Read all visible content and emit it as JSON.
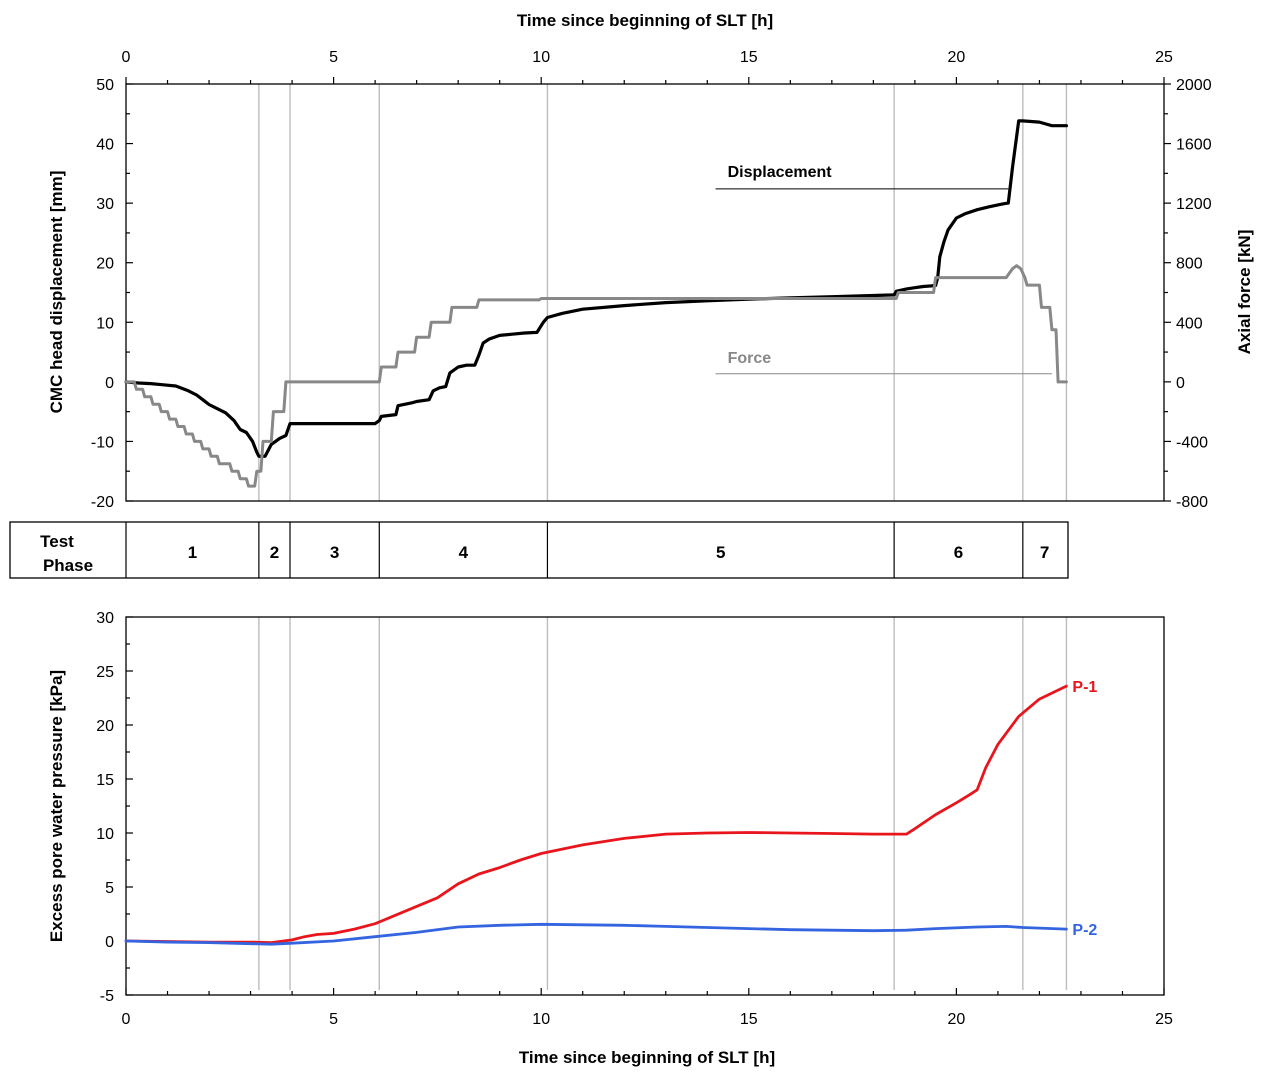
{
  "chart_data": [
    {
      "type": "line",
      "title": "",
      "xlabel_top": "Time since beginning of SLT [h]",
      "ylabel": "CMC head displacement [mm]",
      "y2label": "Axial force [kN]",
      "xlim": [
        0,
        25
      ],
      "ylim": [
        -20,
        50
      ],
      "y2lim": [
        -800,
        2000
      ],
      "xticks": [
        "0",
        "5",
        "10",
        "15",
        "20",
        "25"
      ],
      "yticks": [
        "-20",
        "-10",
        "0",
        "10",
        "20",
        "30",
        "40",
        "50"
      ],
      "y2ticks": [
        "-800",
        "-400",
        "0",
        "400",
        "800",
        "1200",
        "1600",
        "2000"
      ],
      "phase_boundaries": [
        3.2,
        3.95,
        6.1,
        10.15,
        18.5,
        21.6,
        22.65
      ],
      "series": [
        {
          "name": "Displacement",
          "axis": "left",
          "color": "#000000",
          "x": [
            0,
            0.3,
            0.6,
            0.9,
            1.2,
            1.5,
            1.7,
            1.85,
            2.0,
            2.2,
            2.4,
            2.6,
            2.75,
            2.9,
            3.05,
            3.15,
            3.2,
            3.35,
            3.5,
            3.6,
            3.7,
            3.85,
            3.95,
            4.4,
            5.0,
            5.5,
            6.0,
            6.1,
            6.15,
            6.5,
            6.55,
            6.9,
            7.0,
            7.3,
            7.4,
            7.55,
            7.7,
            7.8,
            8.0,
            8.2,
            8.4,
            8.5,
            8.6,
            8.75,
            9.0,
            9.3,
            9.6,
            9.9,
            10.05,
            10.15,
            10.5,
            11.0,
            12.0,
            13.0,
            14.0,
            15.0,
            16.0,
            17.0,
            18.0,
            18.5,
            18.55,
            18.8,
            19.0,
            19.2,
            19.4,
            19.5,
            19.55,
            19.6,
            19.7,
            19.8,
            20.0,
            20.2,
            20.5,
            20.8,
            21.0,
            21.15,
            21.25,
            21.35,
            21.5,
            21.6,
            21.8,
            22.0,
            22.2,
            22.3,
            22.65
          ],
          "y": [
            0,
            -0.2,
            -0.3,
            -0.5,
            -0.7,
            -1.5,
            -2.2,
            -3.0,
            -3.8,
            -4.5,
            -5.2,
            -6.5,
            -8.0,
            -8.5,
            -10.0,
            -11.8,
            -12.5,
            -12.5,
            -10.5,
            -10.0,
            -9.5,
            -9.0,
            -7.0,
            -7.0,
            -7.0,
            -7.0,
            -7.0,
            -6.5,
            -5.8,
            -5.5,
            -4.0,
            -3.5,
            -3.3,
            -3.0,
            -1.5,
            -1.0,
            -0.8,
            1.5,
            2.5,
            2.8,
            2.8,
            4.5,
            6.5,
            7.2,
            7.8,
            8.0,
            8.2,
            8.3,
            10.0,
            10.8,
            11.5,
            12.2,
            12.8,
            13.3,
            13.6,
            13.9,
            14.1,
            14.3,
            14.5,
            14.6,
            15.2,
            15.6,
            15.8,
            16.0,
            16.1,
            16.2,
            17.5,
            21.0,
            23.5,
            25.5,
            27.5,
            28.2,
            28.9,
            29.4,
            29.7,
            29.9,
            30.0,
            36.0,
            43.8,
            43.8,
            43.7,
            43.6,
            43.2,
            43.0,
            43.0
          ]
        },
        {
          "name": "Force",
          "axis": "right",
          "color": "#888888",
          "x": [
            0,
            0.2,
            0.25,
            0.4,
            0.45,
            0.6,
            0.65,
            0.8,
            0.85,
            1.0,
            1.05,
            1.2,
            1.25,
            1.4,
            1.45,
            1.6,
            1.65,
            1.8,
            1.85,
            2.0,
            2.05,
            2.2,
            2.25,
            2.5,
            2.55,
            2.7,
            2.75,
            2.9,
            2.95,
            3.1,
            3.15,
            3.25,
            3.3,
            3.5,
            3.55,
            3.8,
            3.85,
            3.95,
            4.0,
            6.1,
            6.15,
            6.5,
            6.55,
            6.95,
            7.0,
            7.3,
            7.35,
            7.8,
            7.85,
            8.45,
            8.5,
            9.95,
            10.0,
            10.15,
            10.3,
            18.55,
            18.6,
            19.45,
            19.5,
            20.7,
            21.0,
            21.2,
            21.35,
            21.45,
            21.55,
            21.65,
            21.7,
            22.0,
            22.05,
            22.25,
            22.3,
            22.4,
            22.45,
            22.65
          ],
          "y": [
            0,
            0,
            -50,
            -50,
            -100,
            -100,
            -150,
            -150,
            -200,
            -200,
            -250,
            -250,
            -300,
            -300,
            -350,
            -350,
            -400,
            -400,
            -450,
            -450,
            -500,
            -500,
            -550,
            -550,
            -600,
            -600,
            -650,
            -650,
            -700,
            -700,
            -600,
            -600,
            -400,
            -400,
            -200,
            -200,
            0,
            0,
            0,
            0,
            100,
            100,
            200,
            200,
            300,
            300,
            400,
            400,
            500,
            500,
            550,
            550,
            560,
            560,
            560,
            560,
            600,
            600,
            700,
            700,
            700,
            700,
            760,
            780,
            760,
            700,
            650,
            650,
            500,
            500,
            350,
            350,
            0,
            0
          ]
        }
      ],
      "annotations": [
        {
          "text": "Displacement",
          "x": 14.2,
          "y": 34.4,
          "color": "#000000"
        },
        {
          "text": "Force",
          "x": 14.2,
          "y": 3.2,
          "color": "#888888"
        }
      ]
    },
    {
      "type": "line",
      "title": "",
      "xlabel": "Time since beginning of SLT [h]",
      "ylabel": "Excess pore water pressure [kPa]",
      "xlim": [
        0,
        25
      ],
      "ylim": [
        -5,
        30
      ],
      "xticks": [
        "0",
        "5",
        "10",
        "15",
        "20",
        "25"
      ],
      "yticks": [
        "-5",
        "0",
        "5",
        "10",
        "15",
        "20",
        "25",
        "30"
      ],
      "phase_boundaries": [
        3.2,
        3.95,
        6.1,
        10.15,
        18.5,
        21.6,
        22.65
      ],
      "series": [
        {
          "name": "P-1",
          "color": "#e8161c",
          "x": [
            0,
            1.0,
            2.0,
            3.0,
            3.5,
            4.0,
            4.3,
            4.6,
            5.0,
            5.5,
            6.0,
            6.5,
            7.0,
            7.5,
            8.0,
            8.5,
            9.0,
            9.5,
            10.0,
            11.0,
            12.0,
            13.0,
            14.0,
            15.0,
            16.0,
            17.0,
            18.0,
            18.8,
            19.0,
            19.5,
            20.0,
            20.3,
            20.5,
            20.7,
            21.0,
            21.5,
            22.0,
            22.65
          ],
          "y": [
            0,
            -0.05,
            -0.1,
            -0.1,
            -0.15,
            0.1,
            0.4,
            0.6,
            0.7,
            1.1,
            1.6,
            2.4,
            3.2,
            4.0,
            5.3,
            6.2,
            6.8,
            7.5,
            8.1,
            8.9,
            9.5,
            9.9,
            10.0,
            10.05,
            10.0,
            9.95,
            9.9,
            9.9,
            10.4,
            11.7,
            12.8,
            13.5,
            14.0,
            16.0,
            18.2,
            20.8,
            22.4,
            23.6
          ]
        },
        {
          "name": "P-2",
          "color": "#3464e0",
          "x": [
            0,
            1.0,
            2.0,
            3.0,
            3.5,
            4.0,
            5.0,
            6.0,
            7.0,
            8.0,
            9.0,
            10.0,
            11.0,
            12.0,
            13.0,
            14.0,
            15.0,
            16.0,
            17.0,
            18.0,
            18.8,
            19.5,
            20.5,
            21.2,
            21.6,
            22.65
          ],
          "y": [
            0,
            -0.1,
            -0.15,
            -0.25,
            -0.3,
            -0.2,
            0,
            0.4,
            0.8,
            1.3,
            1.45,
            1.55,
            1.5,
            1.45,
            1.35,
            1.25,
            1.15,
            1.05,
            1.0,
            0.95,
            1.0,
            1.15,
            1.3,
            1.35,
            1.25,
            1.1
          ]
        }
      ]
    }
  ],
  "phase_table": {
    "header": "Test\nPhase",
    "header_line1": "Test",
    "header_line2": "Phase",
    "phases": [
      "1",
      "2",
      "3",
      "4",
      "5",
      "6",
      "7"
    ]
  }
}
